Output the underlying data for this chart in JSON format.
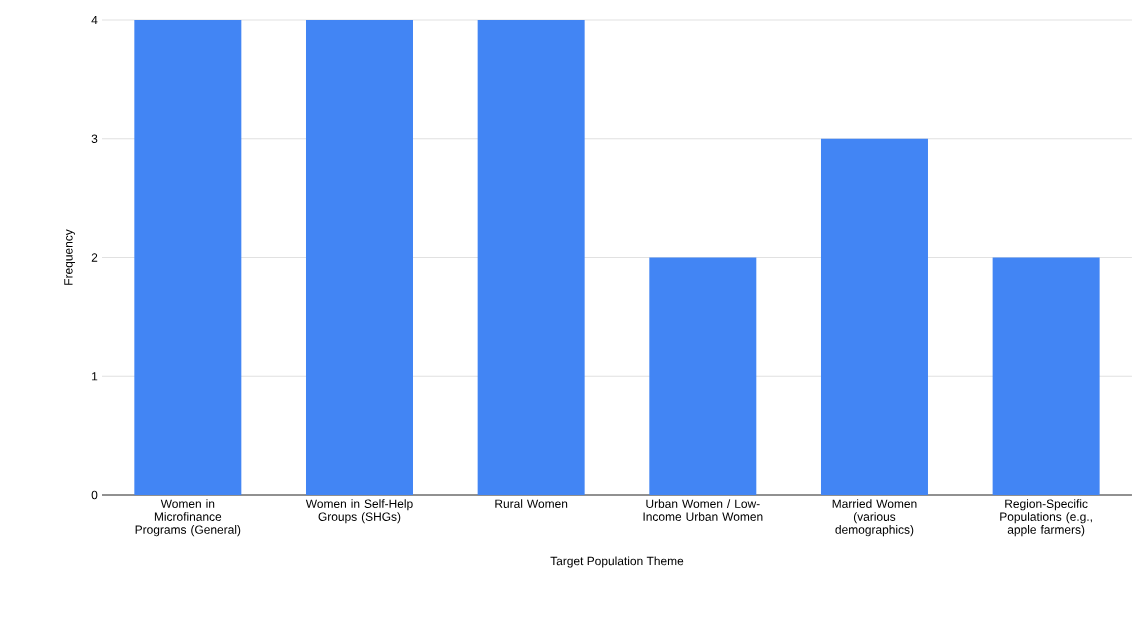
{
  "chart_data": {
    "type": "bar",
    "xlabel": "Target Population Theme",
    "ylabel": "Frequency",
    "categories": [
      "Women in Microfinance Programs (General)",
      "Women in Self-Help Groups (SHGs)",
      "Rural Women",
      "Urban Women / Low-Income Urban Women",
      "Married Women (various demographics)",
      "Region-Specific Populations (e.g., apple farmers)"
    ],
    "values": [
      4,
      4,
      4,
      2,
      3,
      2
    ],
    "color": "#4285f4",
    "ylim": [
      0,
      4
    ],
    "yticks": [
      0,
      1,
      2,
      3,
      4
    ],
    "grid": "y"
  }
}
